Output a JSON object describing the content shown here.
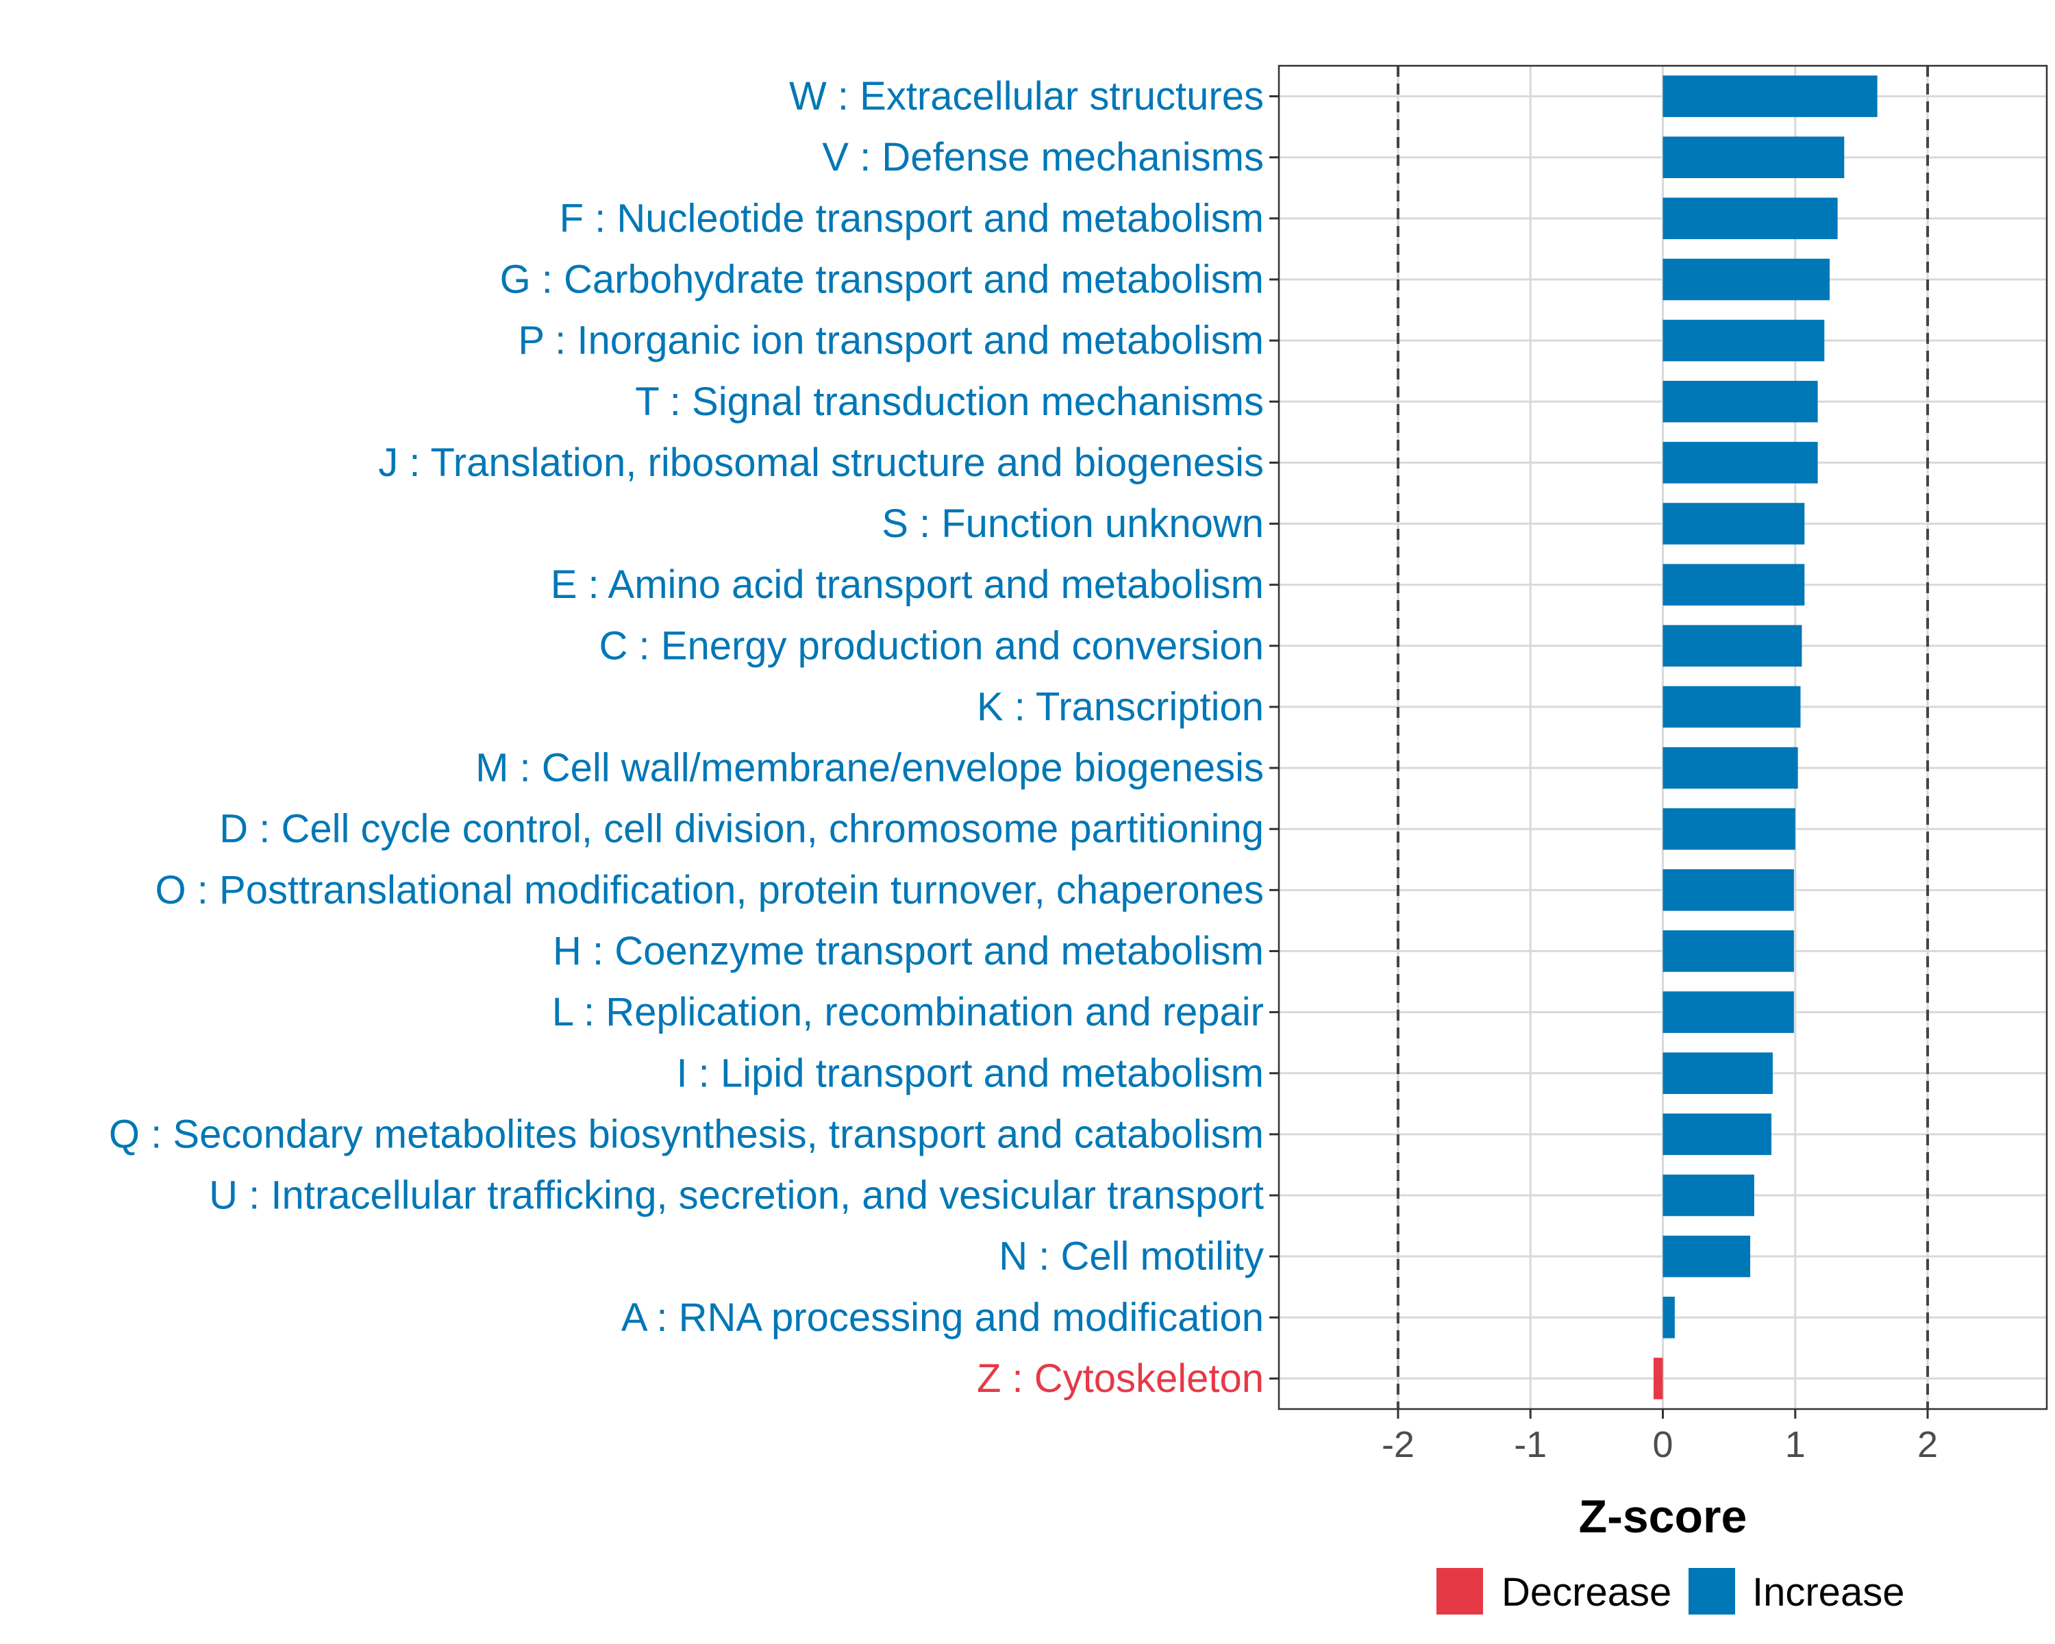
{
  "chart_data": {
    "type": "bar",
    "orientation": "horizontal",
    "xlabel": "Z-score",
    "ylabel": "",
    "xlim": [
      -2.9,
      2.9
    ],
    "x_ticks": [
      -2,
      -1,
      0,
      1,
      2
    ],
    "x_tick_labels": [
      "-2",
      "-1",
      "0",
      "1",
      "2"
    ],
    "reference_lines": [
      -2,
      2
    ],
    "grid": true,
    "legend_position": "bottom",
    "colors": {
      "Decrease": "#e63946",
      "Increase": "#0077b6"
    },
    "legend": [
      "Decrease",
      "Increase"
    ],
    "categories": [
      "W : Extracellular structures",
      "V : Defense mechanisms",
      "F : Nucleotide transport and metabolism",
      "G : Carbohydrate transport and metabolism",
      "P : Inorganic ion transport and metabolism",
      "T : Signal transduction mechanisms",
      "J : Translation, ribosomal structure and biogenesis",
      "S : Function unknown",
      "E : Amino acid transport and metabolism",
      "C : Energy production and conversion",
      "K : Transcription",
      "M : Cell wall/membrane/envelope biogenesis",
      "D : Cell cycle control, cell division, chromosome partitioning",
      "O : Posttranslational modification, protein turnover, chaperones",
      "H : Coenzyme transport and metabolism",
      "L : Replication, recombination and repair",
      "I : Lipid transport and metabolism",
      "Q : Secondary metabolites biosynthesis, transport and catabolism",
      "U : Intracellular trafficking, secretion, and vesicular transport",
      "N : Cell motility",
      "A : RNA processing and modification",
      "Z : Cytoskeleton"
    ],
    "values": [
      1.62,
      1.37,
      1.32,
      1.26,
      1.22,
      1.17,
      1.17,
      1.07,
      1.07,
      1.05,
      1.04,
      1.02,
      1.0,
      0.99,
      0.99,
      0.99,
      0.83,
      0.82,
      0.69,
      0.66,
      0.09,
      -0.07
    ],
    "groups": [
      "Increase",
      "Increase",
      "Increase",
      "Increase",
      "Increase",
      "Increase",
      "Increase",
      "Increase",
      "Increase",
      "Increase",
      "Increase",
      "Increase",
      "Increase",
      "Increase",
      "Increase",
      "Increase",
      "Increase",
      "Increase",
      "Increase",
      "Increase",
      "Increase",
      "Decrease"
    ]
  }
}
